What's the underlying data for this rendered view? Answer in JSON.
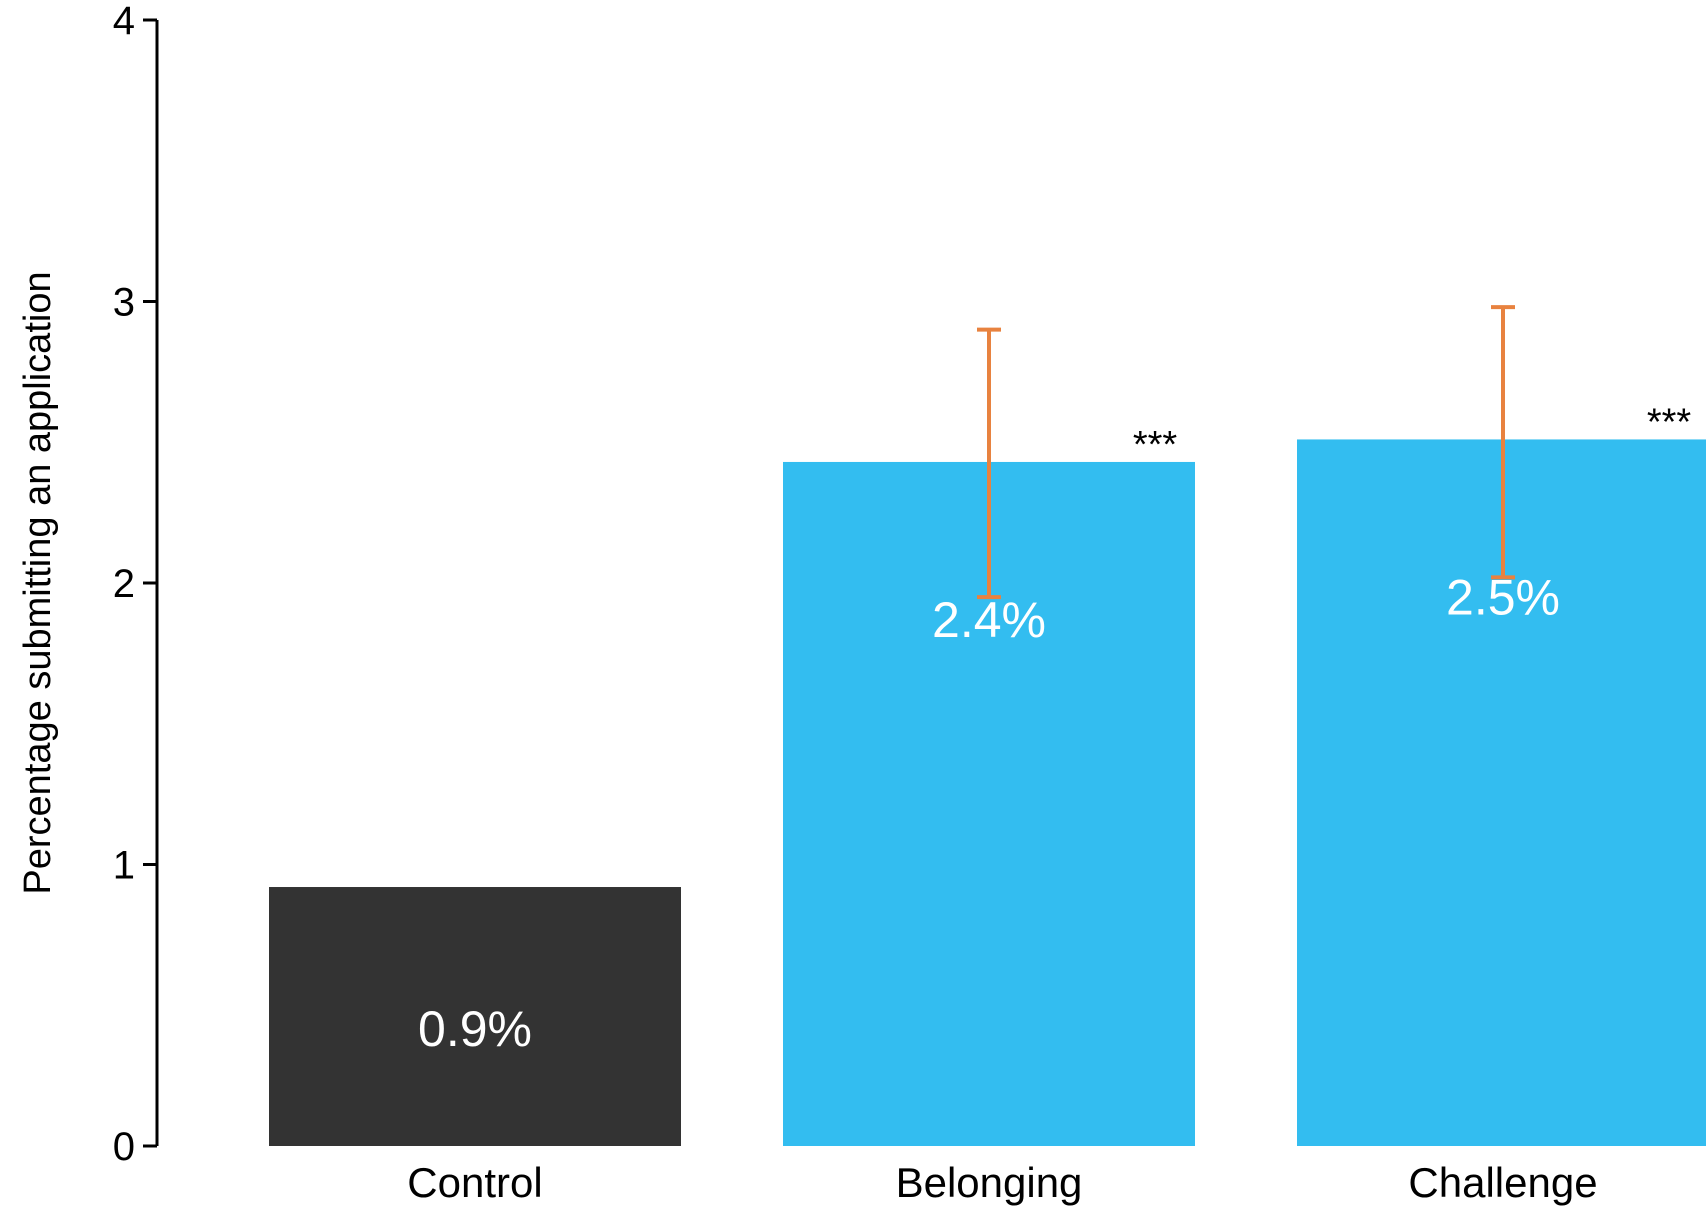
{
  "chart_data": {
    "type": "bar",
    "title": "",
    "xlabel": "",
    "ylabel": "Percentage submitting an application",
    "ylim": [
      0,
      4
    ],
    "yticks": [
      0,
      1,
      2,
      3,
      4
    ],
    "categories": [
      "Control",
      "Belonging",
      "Challenge"
    ],
    "values": [
      0.92,
      2.43,
      2.51
    ],
    "data_labels": [
      "0.9%",
      "2.4%",
      "2.5%"
    ],
    "error_bars": [
      null,
      {
        "low": 1.95,
        "high": 2.9
      },
      {
        "low": 2.02,
        "high": 2.98
      }
    ],
    "significance": [
      "",
      "***",
      "***"
    ],
    "grid": false,
    "legend": "none",
    "colors": {
      "bars": [
        "#333333",
        "#33bdf0",
        "#33bdf0"
      ],
      "error_bar": "#e8823f",
      "axis": "#000000",
      "data_label": "#ffffff"
    }
  }
}
